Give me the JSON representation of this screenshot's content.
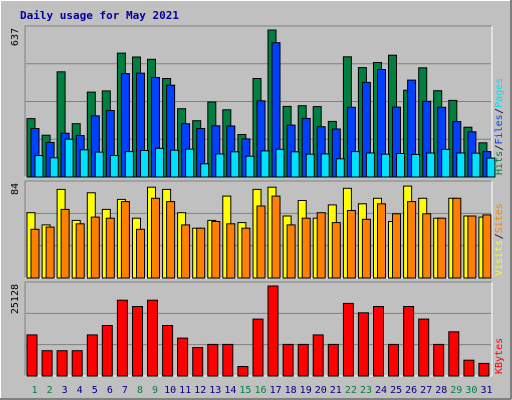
{
  "chart_data": {
    "title": "Daily usage for May 2021",
    "days": [
      "1",
      "2",
      "3",
      "4",
      "5",
      "6",
      "7",
      "8",
      "9",
      "10",
      "11",
      "12",
      "13",
      "14",
      "15",
      "16",
      "17",
      "18",
      "19",
      "20",
      "21",
      "22",
      "23",
      "24",
      "25",
      "26",
      "27",
      "28",
      "29",
      "30",
      "31"
    ],
    "weekend_days": [
      1,
      2,
      8,
      9,
      15,
      16,
      22,
      23,
      29,
      30
    ],
    "colors": {
      "hits": "#008040",
      "files": "#0040ff",
      "pages": "#00e0ff",
      "visits": "#ffff00",
      "sites": "#ff8000",
      "kbytes": "#ff0000",
      "title": "#0000a0",
      "weekend_label": "#008040",
      "weekday_label": "#000080",
      "separator": "#000000"
    },
    "panels": [
      {
        "type": "bar",
        "ymax": "637",
        "ylim": [
          0,
          637
        ],
        "legend": [
          {
            "name": "Hits",
            "color": "#008040"
          },
          {
            "name": "Files",
            "color": "#0040ff"
          },
          {
            "name": "Pages",
            "color": "#00e0ff"
          }
        ],
        "series": [
          {
            "name": "Hits",
            "values": [
              253,
              181,
              456,
              231,
              368,
              373,
              537,
              520,
              510,
              427,
              296,
              244,
              325,
              291,
              184,
              427,
              637,
              306,
              309,
              305,
              241,
              521,
              474,
              496,
              528,
              376,
              473,
              374,
              332,
              216,
              148
            ]
          },
          {
            "name": "Files",
            "values": [
              210,
              150,
              190,
              180,
              265,
              288,
              448,
              450,
              431,
              398,
              231,
              210,
              222,
              221,
              165,
              330,
              582,
              225,
              254,
              218,
              208,
              302,
              410,
              466,
              303,
              420,
              328,
              302,
              240,
              196,
              110
            ]
          },
          {
            "name": "Pages",
            "values": [
              93,
              83,
              164,
              118,
              108,
              93,
              110,
              115,
              124,
              116,
              121,
              57,
              100,
              109,
              90,
              113,
              120,
              109,
              99,
              100,
              79,
              110,
              104,
              99,
              102,
              98,
              104,
              120,
              104,
              103,
              82
            ]
          }
        ]
      },
      {
        "type": "bar",
        "ymax": "84",
        "ylim": [
          0,
          84
        ],
        "legend": [
          {
            "name": "Visits",
            "color": "#ffff00"
          },
          {
            "name": "Sites",
            "color": "#ff8000"
          }
        ],
        "series": [
          {
            "name": "Visits",
            "values": [
              59,
              48,
              80,
              52,
              77,
              62,
              71,
              54,
              82,
              80,
              59,
              45,
              52,
              74,
              50,
              80,
              82,
              56,
              70,
              54,
              66,
              81,
              67,
              72,
              51,
              83,
              72,
              54,
              72,
              56,
              55
            ]
          },
          {
            "name": "Sites",
            "values": [
              44,
              46,
              62,
              49,
              55,
              54,
              69,
              44,
              72,
              69,
              48,
              45,
              51,
              49,
              45,
              65,
              74,
              48,
              54,
              59,
              50,
              61,
              53,
              67,
              58,
              69,
              58,
              54,
              72,
              56,
              57
            ]
          }
        ]
      },
      {
        "type": "bar",
        "ymax": "25128",
        "ylim": [
          0,
          25128
        ],
        "legend": [
          {
            "name": "KBytes",
            "color": "#ff0000"
          }
        ],
        "series": [
          {
            "name": "KBytes",
            "values": [
              11470,
              7050,
              7050,
              7050,
              11470,
              14110,
              21160,
              19400,
              21160,
              14110,
              10590,
              7940,
              8820,
              8820,
              2650,
              15880,
              25128,
              8820,
              8820,
              11470,
              8820,
              20280,
              17640,
              19400,
              8820,
              19400,
              15880,
              8820,
              12350,
              4410,
              3530
            ]
          }
        ]
      }
    ]
  }
}
